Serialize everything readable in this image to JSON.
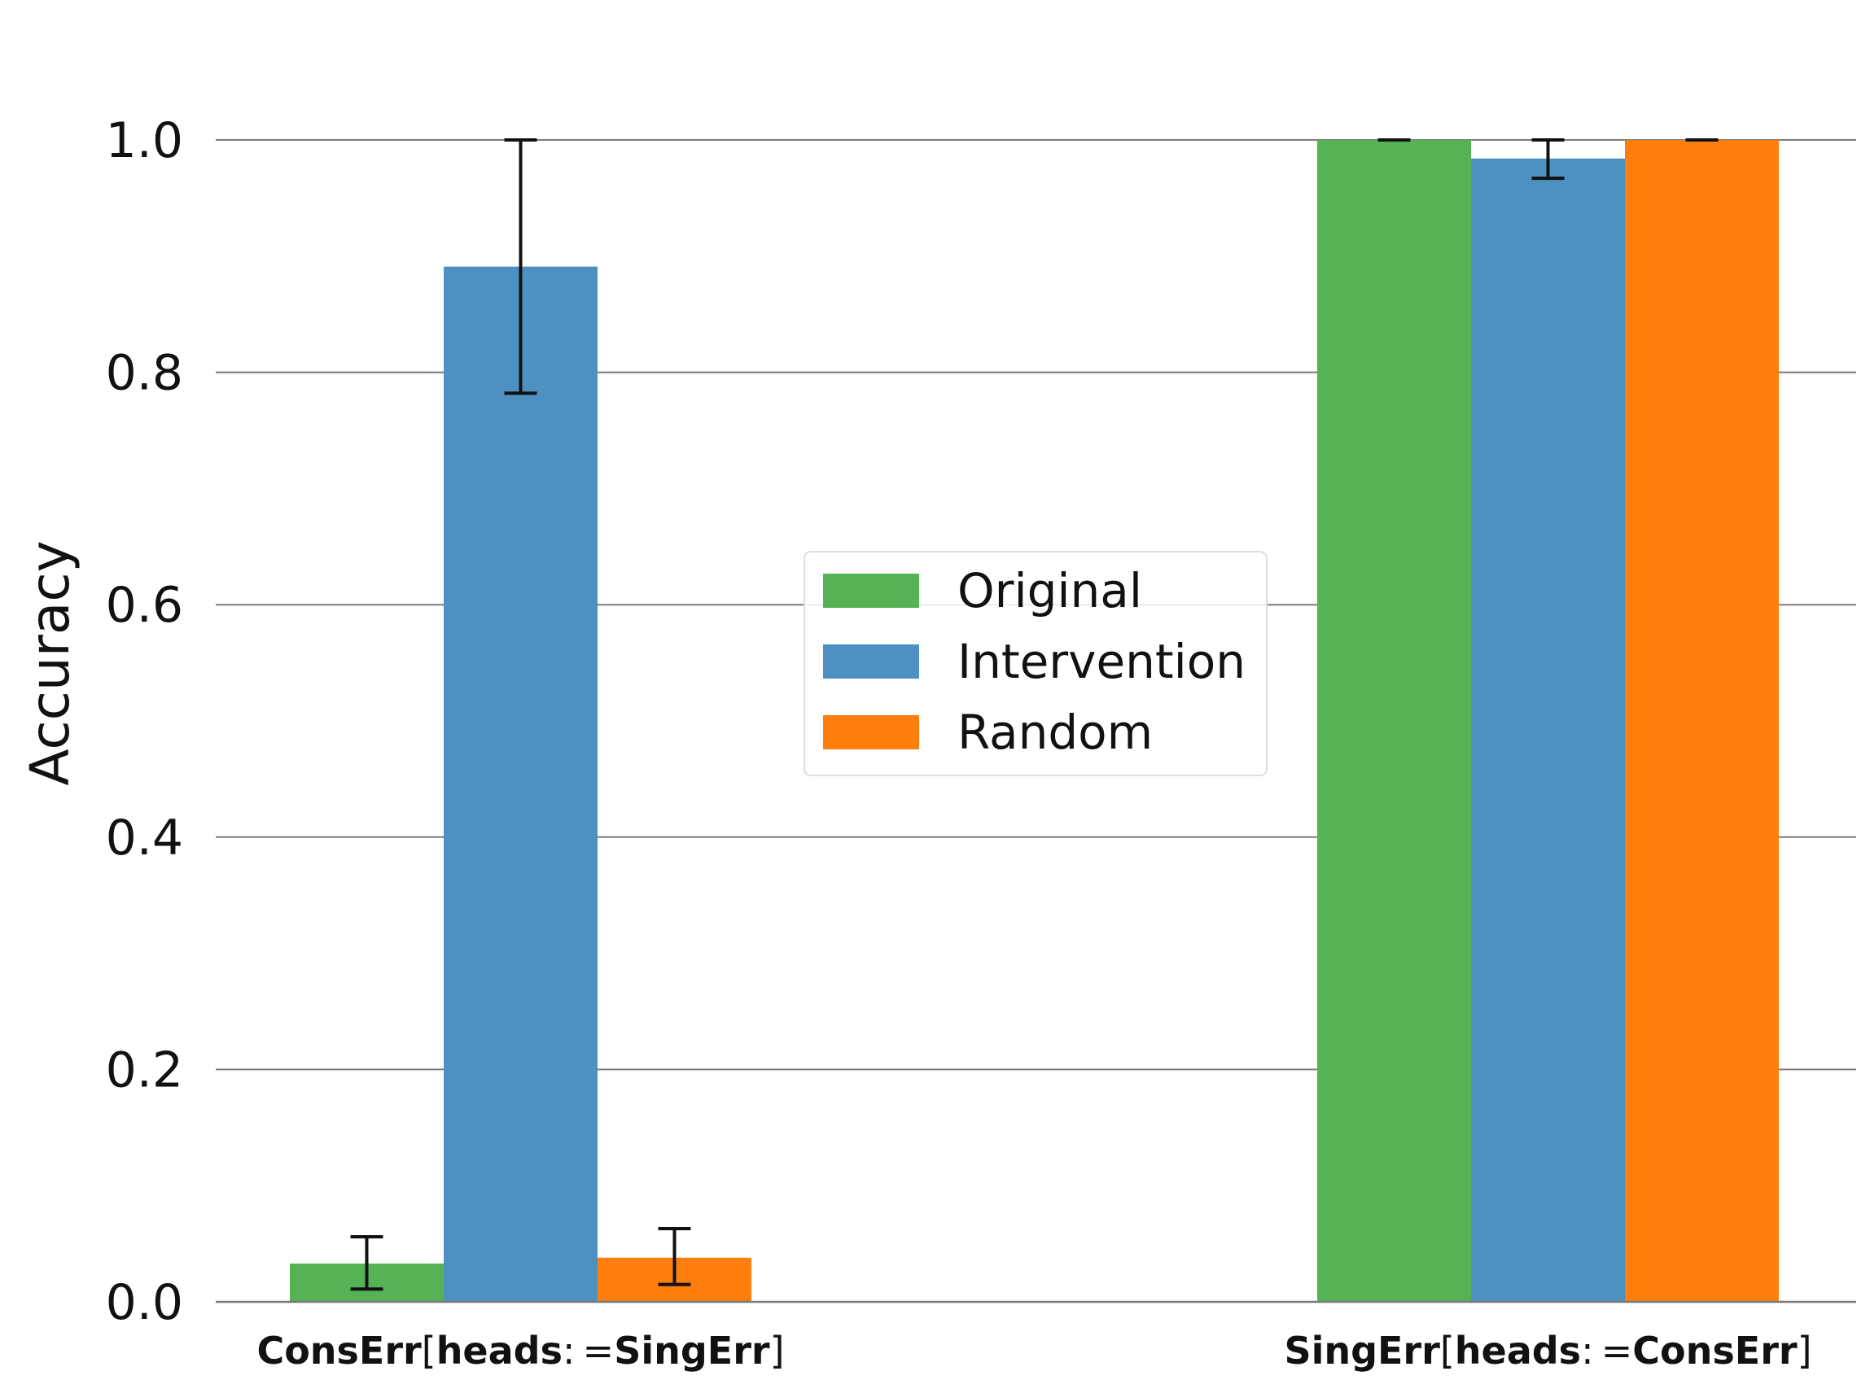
{
  "chart_data": {
    "type": "bar",
    "title": "",
    "xlabel": "",
    "ylabel": "Accuracy",
    "ylim": [
      0,
      1.0
    ],
    "yticks": [
      "0.0",
      "0.2",
      "0.4",
      "0.6",
      "0.8",
      "1.0"
    ],
    "grid": true,
    "legend_position": "center",
    "categories": [
      {
        "bold1": "ConsErr",
        "open": "[",
        "bold2": "heads",
        "op": ": =",
        "bold3": "SingErr",
        "close": "]"
      },
      {
        "bold1": "SingErr",
        "open": "[",
        "bold2": "heads",
        "op": ": =",
        "bold3": "ConsErr",
        "close": "]"
      }
    ],
    "series": [
      {
        "name": "Original",
        "color": "#55b255",
        "values": [
          0.033,
          1.0
        ],
        "err_low": [
          0.011,
          1.0
        ],
        "err_high": [
          0.056,
          1.0
        ]
      },
      {
        "name": "Intervention",
        "color": "#4c91c2",
        "values": [
          0.891,
          0.984
        ],
        "err_low": [
          0.782,
          0.967
        ],
        "err_high": [
          1.0,
          1.0
        ]
      },
      {
        "name": "Random",
        "color": "#ff7f0e",
        "values": [
          0.038,
          1.0
        ],
        "err_low": [
          0.015,
          1.0
        ],
        "err_high": [
          0.063,
          1.0
        ]
      }
    ]
  }
}
